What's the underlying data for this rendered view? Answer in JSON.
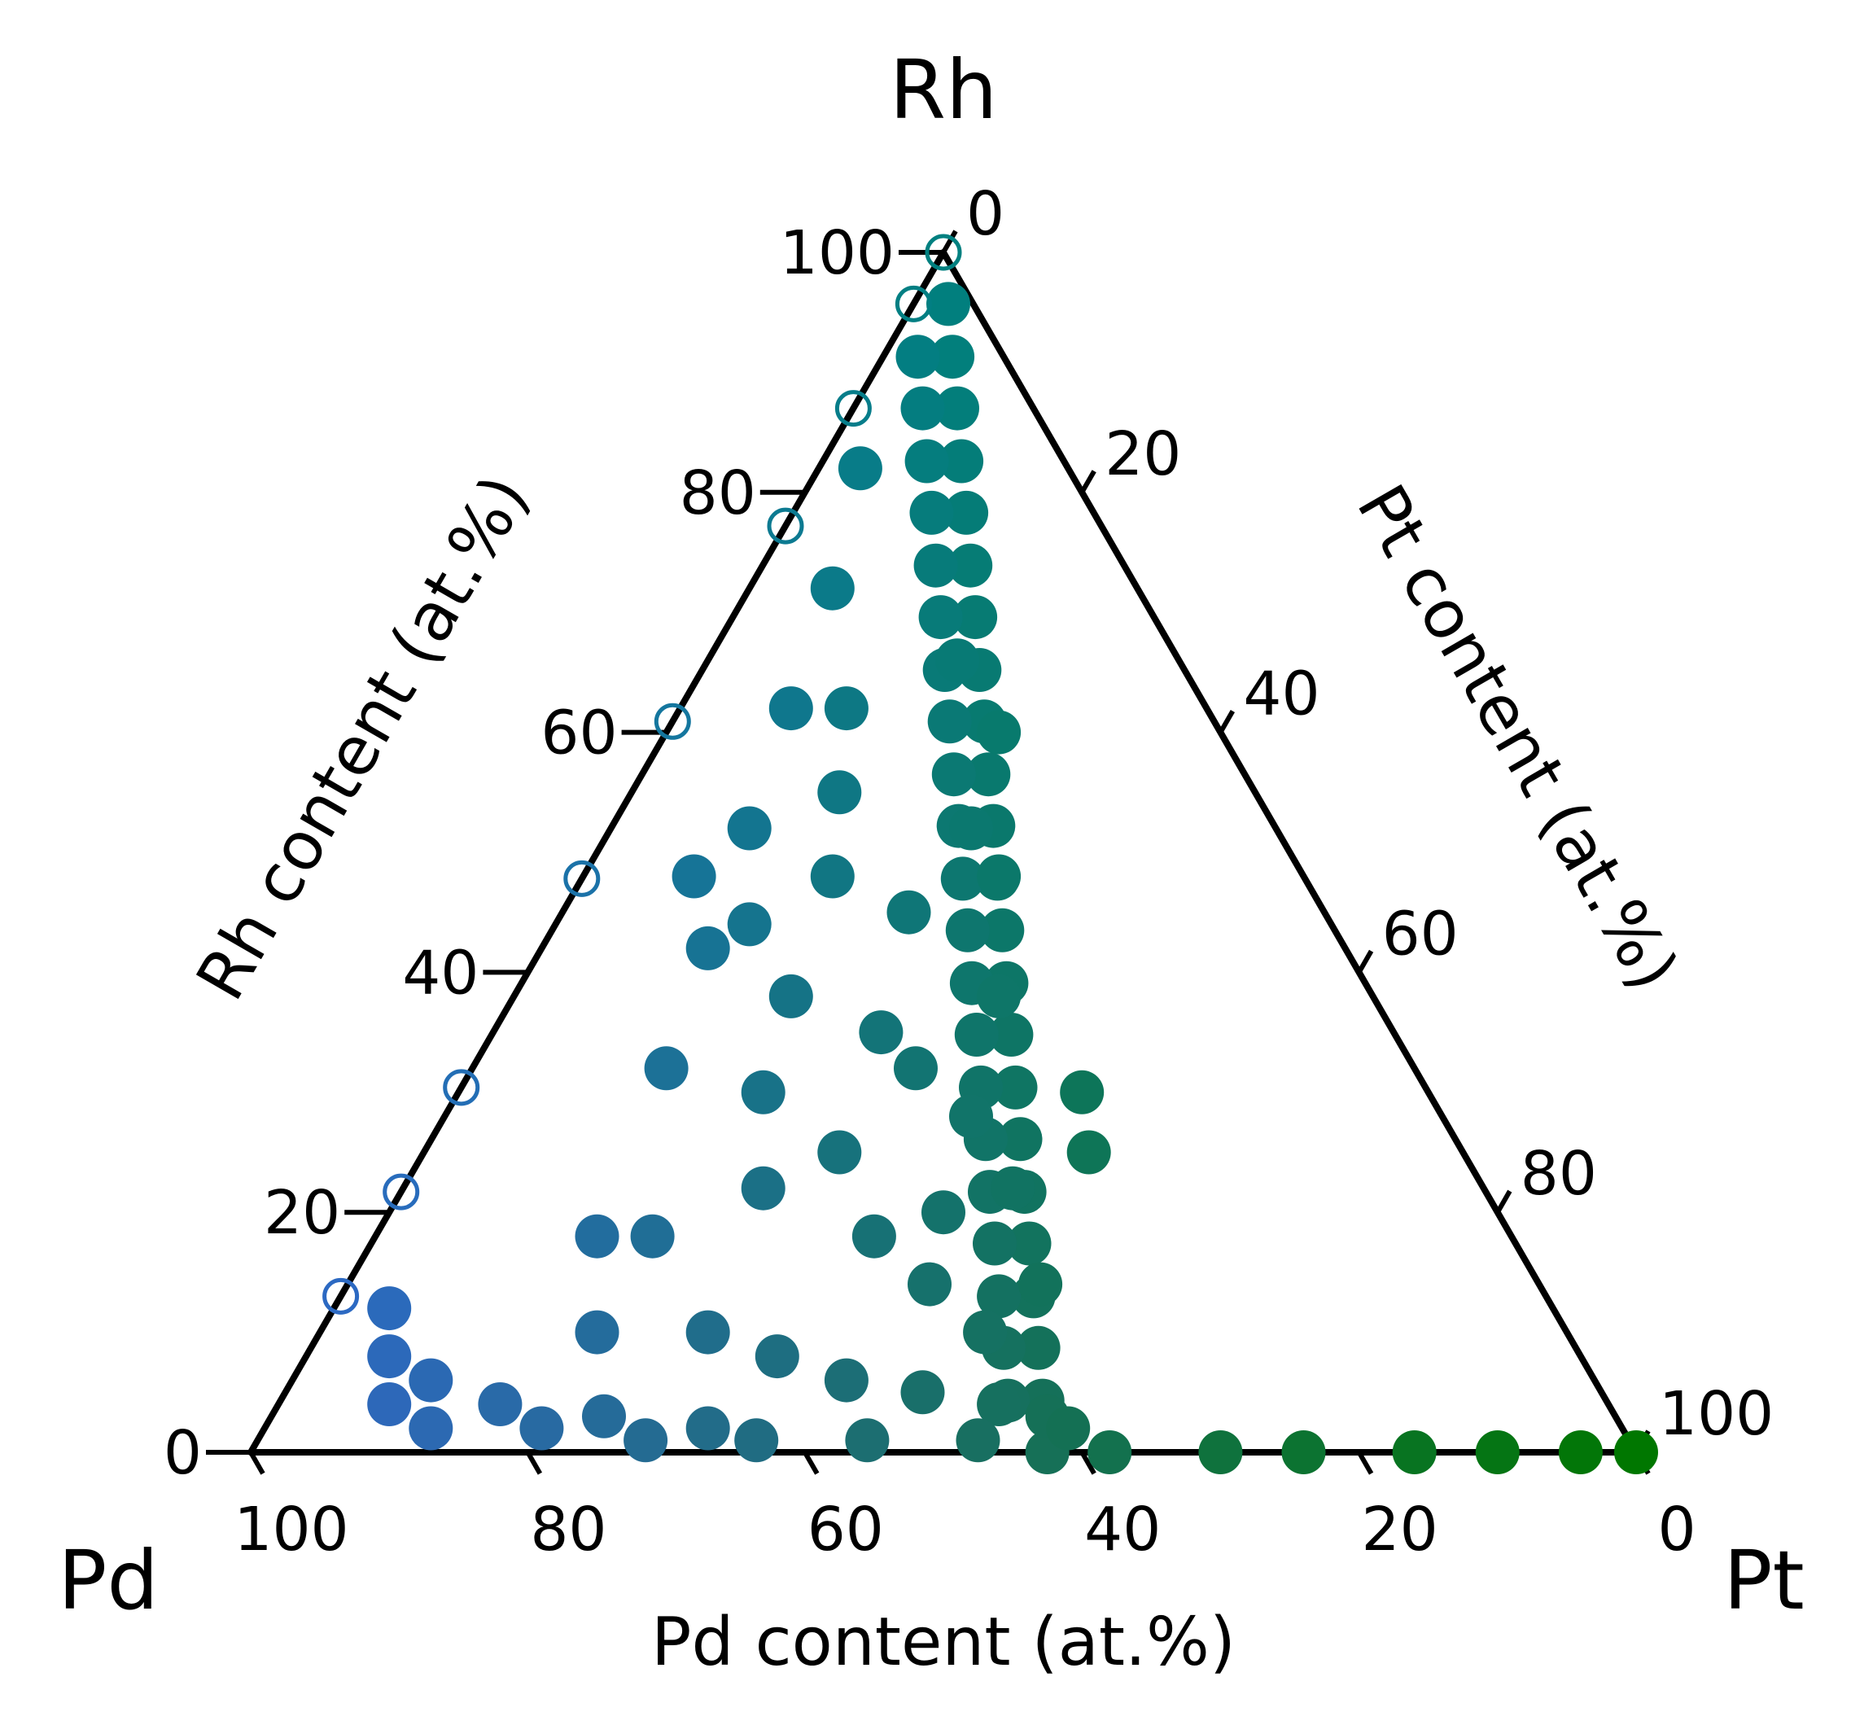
{
  "chart_data": {
    "type": "scatter",
    "subtype": "ternary",
    "corners": {
      "left": "Pd",
      "right": "Pt",
      "top": "Rh"
    },
    "axis_titles": {
      "bottom": "Pd content (at.%)",
      "left": "Rh content (at.%)",
      "right": "Pt content (at.%)"
    },
    "ticks": [
      "0",
      "20",
      "40",
      "60",
      "80",
      "100"
    ],
    "colors": {
      "pd": "#3366cc",
      "rh": "#008080",
      "pt": "#007700"
    },
    "marker_fill": "Pd-Rh binary edge points are hollow rings; all other compositions are filled",
    "points": [
      [
        0,
        100
      ],
      [
        2.5,
        95.7
      ],
      [
        5,
        91.3
      ],
      [
        7.5,
        87
      ],
      [
        10,
        82.6
      ],
      [
        12.5,
        78.3
      ],
      [
        15,
        73.9
      ],
      [
        17.5,
        69.6
      ],
      [
        20,
        65.2
      ],
      [
        22.5,
        60.9
      ],
      [
        25,
        56.5
      ],
      [
        27.5,
        52.2
      ],
      [
        30,
        47.8
      ],
      [
        32.5,
        43.5
      ],
      [
        35,
        39.1
      ],
      [
        37.5,
        34.8
      ],
      [
        40,
        30.4
      ],
      [
        42.5,
        26.1
      ],
      [
        45,
        21.7
      ],
      [
        47.5,
        17.4
      ],
      [
        50,
        13
      ],
      [
        52.5,
        8.7
      ],
      [
        55,
        4.3
      ],
      [
        57.5,
        0
      ],
      [
        52.5,
        4.3
      ],
      [
        50,
        8.7
      ],
      [
        47.5,
        13
      ],
      [
        45,
        17.4
      ],
      [
        42.5,
        21.7
      ],
      [
        40,
        26.1
      ],
      [
        37.5,
        30.4
      ],
      [
        35,
        34.8
      ],
      [
        32.5,
        39.1
      ],
      [
        30,
        43.5
      ],
      [
        27.5,
        47.8
      ],
      [
        25,
        52.2
      ],
      [
        22.5,
        56.5
      ],
      [
        20,
        60.9
      ],
      [
        17.5,
        65.2
      ],
      [
        15,
        69.6
      ],
      [
        12.5,
        73.9
      ],
      [
        10,
        78.3
      ],
      [
        7.5,
        82.6
      ],
      [
        5,
        87
      ],
      [
        2.5,
        91.3
      ],
      [
        0,
        95.7
      ],
      [
        0,
        87
      ],
      [
        0,
        77.2
      ],
      [
        0,
        60.9
      ],
      [
        0,
        47.8
      ],
      [
        0,
        30.4
      ],
      [
        0,
        21.7
      ],
      [
        0,
        13
      ],
      [
        32,
        32
      ],
      [
        40,
        20
      ],
      [
        25,
        45
      ],
      [
        15,
        55
      ],
      [
        35,
        38
      ],
      [
        45,
        30
      ],
      [
        20,
        38
      ],
      [
        28,
        35
      ],
      [
        38,
        28
      ],
      [
        48,
        25
      ],
      [
        10,
        52
      ],
      [
        12,
        42
      ],
      [
        18,
        48
      ],
      [
        22,
        30
      ],
      [
        30,
        25
      ],
      [
        36,
        18
      ],
      [
        42,
        14
      ],
      [
        48,
        10
      ],
      [
        50,
        14
      ],
      [
        44,
        22
      ],
      [
        26,
        22
      ],
      [
        20,
        18
      ],
      [
        14,
        32
      ],
      [
        8,
        62
      ],
      [
        6,
        72
      ],
      [
        3,
        82
      ],
      [
        18,
        66
      ],
      [
        24,
        60
      ],
      [
        12,
        62
      ],
      [
        26,
        52
      ],
      [
        30,
        48
      ],
      [
        8,
        48
      ],
      [
        14,
        44
      ],
      [
        20,
        10
      ],
      [
        16,
        18
      ],
      [
        28,
        10
      ],
      [
        34,
        8
      ],
      [
        40,
        6
      ],
      [
        46,
        5
      ],
      [
        52,
        4
      ],
      [
        56,
        3
      ],
      [
        58,
        2
      ],
      [
        32,
        2
      ],
      [
        24,
        3
      ],
      [
        16,
        4
      ],
      [
        10,
        6
      ],
      [
        6,
        8
      ],
      [
        4,
        12
      ],
      [
        8,
        4
      ],
      [
        12,
        2
      ],
      [
        20,
        2
      ],
      [
        28,
        1
      ],
      [
        36,
        1
      ],
      [
        44,
        1
      ],
      [
        52,
        1
      ],
      [
        62,
        0
      ],
      [
        70,
        0
      ],
      [
        76,
        0
      ],
      [
        84,
        0
      ],
      [
        90,
        0
      ],
      [
        96,
        0
      ],
      [
        100,
        0
      ]
    ]
  }
}
